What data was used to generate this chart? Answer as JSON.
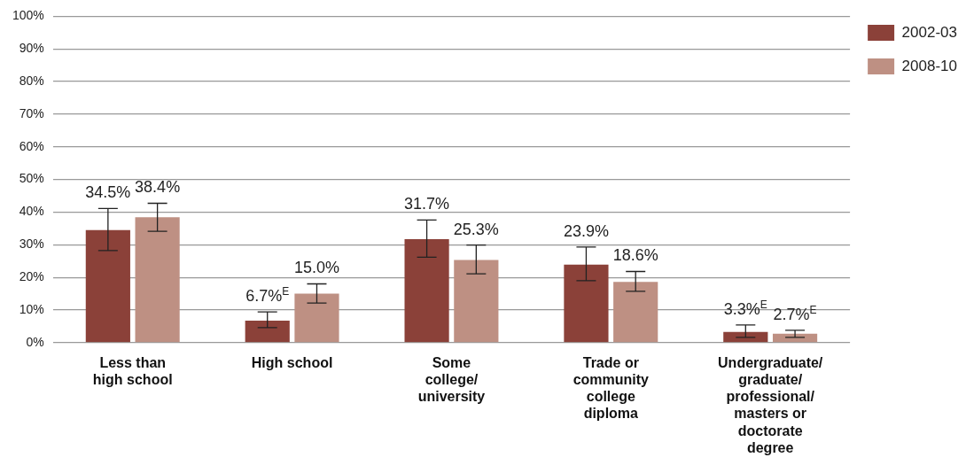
{
  "chart_data": {
    "type": "bar",
    "categories": [
      "Less than high school",
      "High school",
      "Some college/ university",
      "Trade or community college diploma",
      "Undergraduate/ graduate/ professional/ masters or doctorate degree"
    ],
    "series": [
      {
        "name": "2002-03",
        "color": "#8b4139",
        "values": [
          34.5,
          6.7,
          31.7,
          23.9,
          3.3
        ],
        "errors": [
          [
            28.2,
            41.1
          ],
          [
            4.6,
            9.4
          ],
          [
            26.2,
            37.6
          ],
          [
            19.0,
            29.3
          ],
          [
            1.6,
            5.4
          ]
        ],
        "value_labels": [
          "34.5%",
          "6.7%$^{E}$",
          "31.7%",
          "23.9%",
          "3.3%$^{E}$"
        ]
      },
      {
        "name": "2008-10",
        "color": "#be9083",
        "values": [
          38.4,
          15.0,
          25.3,
          18.6,
          2.7
        ],
        "errors": [
          [
            34.1,
            42.7
          ],
          [
            12.1,
            18.0
          ],
          [
            21.1,
            29.9
          ],
          [
            15.7,
            21.8
          ],
          [
            1.6,
            3.8
          ]
        ],
        "value_labels": [
          "38.4%",
          "15.0%",
          "25.3%",
          "18.6%",
          "2.7%$^{E}$"
        ]
      }
    ],
    "ylim": [
      0,
      100
    ],
    "yticks": [
      {
        "value": 0,
        "label": "0%"
      },
      {
        "value": 10,
        "label": "10%"
      },
      {
        "value": 20,
        "label": "20%"
      },
      {
        "value": 30,
        "label": "30%"
      },
      {
        "value": 40,
        "label": "40%"
      },
      {
        "value": 50,
        "label": "50%"
      },
      {
        "value": 60,
        "label": "60%"
      },
      {
        "value": 70,
        "label": "70%"
      },
      {
        "value": 80,
        "label": "80%"
      },
      {
        "value": 90,
        "label": "90%"
      },
      {
        "value": 100,
        "label": "100%"
      }
    ],
    "grid": "y",
    "legend": "top right"
  }
}
